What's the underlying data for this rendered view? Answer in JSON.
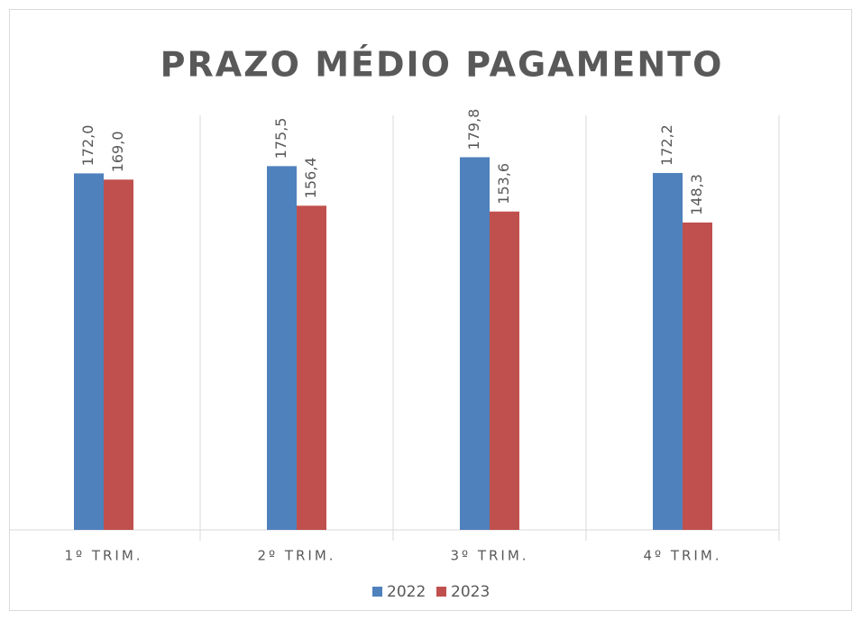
{
  "chart_data": {
    "type": "bar",
    "title": "PRAZO MÉDIO PAGAMENTO",
    "categories": [
      "1º TRIM.",
      "2º TRIM.",
      "3º TRIM.",
      "4º TRIM."
    ],
    "series": [
      {
        "name": "2022",
        "color": "#4f81bd",
        "values": [
          172.0,
          175.5,
          179.8,
          172.2
        ],
        "value_labels": [
          "172,0",
          "175,5",
          "179,8",
          "172,2"
        ]
      },
      {
        "name": "2023",
        "color": "#c0504d",
        "values": [
          169.0,
          156.4,
          153.6,
          148.3
        ],
        "value_labels": [
          "169,0",
          "156,4",
          "153,6",
          "148,3"
        ]
      }
    ],
    "ylim": [
      0,
      200
    ],
    "legend": "bottom"
  }
}
